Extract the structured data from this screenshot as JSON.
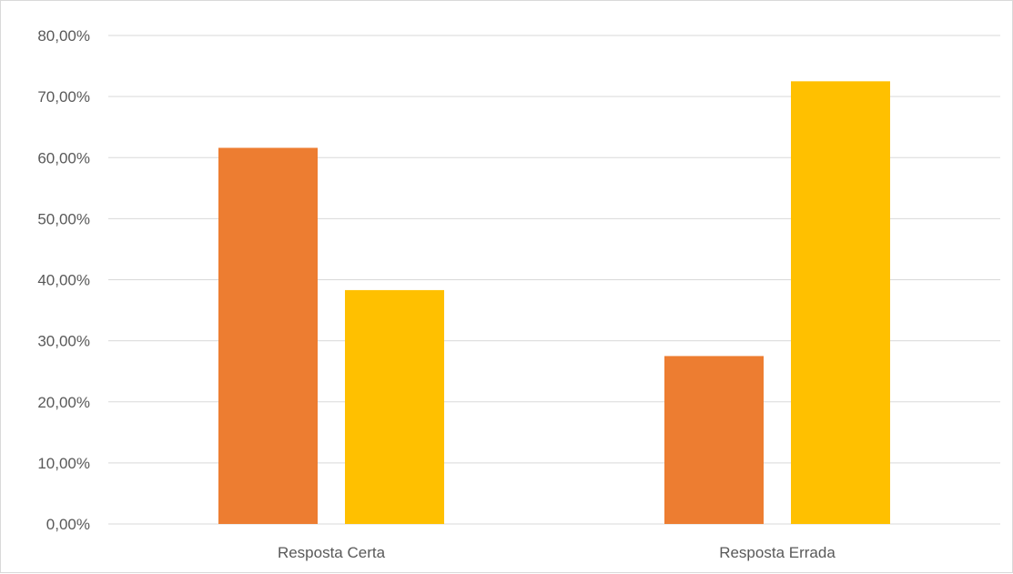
{
  "chart_data": {
    "type": "bar",
    "categories": [
      "Resposta Certa",
      "Resposta Errada"
    ],
    "series": [
      {
        "color": "#ED7D31",
        "values": [
          61.6,
          27.5
        ]
      },
      {
        "color": "#FFC000",
        "values": [
          38.3,
          72.5
        ]
      }
    ],
    "ylim": [
      0,
      80
    ],
    "y_ticks": [
      "0,00%",
      "10,00%",
      "20,00%",
      "30,00%",
      "40,00%",
      "50,00%",
      "60,00%",
      "70,00%",
      "80,00%"
    ],
    "grid": true,
    "gridline_color": "#d9d9d9",
    "legend": "none",
    "title": "",
    "xlabel": "",
    "ylabel": ""
  }
}
